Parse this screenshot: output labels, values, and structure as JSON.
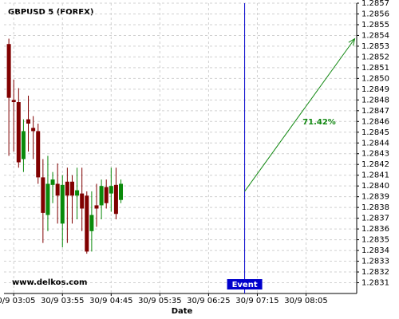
{
  "chart_data": {
    "type": "candlestick",
    "title": "GBPUSD 5 (FOREX)",
    "watermark": "www.delkos.com",
    "x_label": "Date",
    "x": [
      "30/9 03:00",
      "30/9 03:05",
      "30/9 03:10",
      "30/9 03:15",
      "30/9 03:20",
      "30/9 03:25",
      "30/9 03:30",
      "30/9 03:35",
      "30/9 03:40",
      "30/9 03:45",
      "30/9 03:50",
      "30/9 03:55",
      "30/9 04:00",
      "30/9 04:05",
      "30/9 04:10",
      "30/9 04:15",
      "30/9 04:20",
      "30/9 04:25",
      "30/9 04:30",
      "30/9 04:35",
      "30/9 04:40",
      "30/9 04:45",
      "30/9 04:50",
      "30/9 04:55"
    ],
    "open": [
      1.28532,
      1.2848,
      1.28478,
      1.28425,
      1.28462,
      1.28454,
      1.28451,
      1.28408,
      1.28373,
      1.28401,
      1.28402,
      1.28365,
      1.28404,
      1.28404,
      1.28391,
      1.28393,
      1.28391,
      1.28358,
      1.28382,
      1.28382,
      1.28399,
      1.28393,
      1.28401,
      1.28387
    ],
    "high": [
      1.28537,
      1.28499,
      1.28491,
      1.28462,
      1.28484,
      1.28465,
      1.28458,
      1.28425,
      1.28428,
      1.28413,
      1.28421,
      1.2841,
      1.28417,
      1.2841,
      1.28417,
      1.28417,
      1.28395,
      1.28395,
      1.28402,
      1.28406,
      1.28406,
      1.28417,
      1.28417,
      1.28406
    ],
    "low": [
      1.28428,
      1.28432,
      1.28417,
      1.28413,
      1.28432,
      1.28425,
      1.28402,
      1.28347,
      1.28358,
      1.28384,
      1.28365,
      1.28343,
      1.28347,
      1.28365,
      1.28369,
      1.28358,
      1.28337,
      1.28339,
      1.28362,
      1.28369,
      1.28379,
      1.28376,
      1.28369,
      1.28384
    ],
    "close": [
      1.28482,
      1.28478,
      1.28422,
      1.28451,
      1.28458,
      1.28451,
      1.28408,
      1.28375,
      1.28402,
      1.28406,
      1.28391,
      1.28401,
      1.28391,
      1.28391,
      1.28396,
      1.28379,
      1.28339,
      1.28373,
      1.28379,
      1.284,
      1.28384,
      1.284,
      1.28374,
      1.28402
    ],
    "up_color": "#0a8a0a",
    "down_color": "#800000",
    "xlim": [
      "30/9 02:55",
      "30/9 08:57"
    ],
    "xticks": [
      "30/9 03:05",
      "30/9 03:55",
      "30/9 04:45",
      "30/9 05:35",
      "30/9 06:25",
      "30/9 07:15",
      "30/9 08:05"
    ],
    "ylim": [
      1.283,
      1.2857
    ],
    "yticks": [
      1.2831,
      1.2832,
      1.2833,
      1.2834,
      1.2835,
      1.2836,
      1.2837,
      1.2838,
      1.2839,
      {
        "value": 1.284,
        "label": "1.2840"
      },
      1.2841,
      1.2842,
      1.2843,
      1.2844,
      1.2845,
      1.2846,
      1.2847,
      1.2848,
      1.2849,
      {
        "value": 1.285,
        "label": "1.2850"
      },
      1.2851,
      1.2852,
      1.2853,
      1.2854,
      1.2855,
      1.2856,
      1.2857
    ],
    "grid": true,
    "event": {
      "x": "30/9 07:02",
      "label": "Event",
      "color": "#0000cc"
    },
    "arrow": {
      "x": [
        "30/9 07:02",
        "30/9 08:55"
      ],
      "y": [
        1.28395,
        1.28537
      ],
      "label": "71.42%",
      "color": "#118811"
    }
  }
}
